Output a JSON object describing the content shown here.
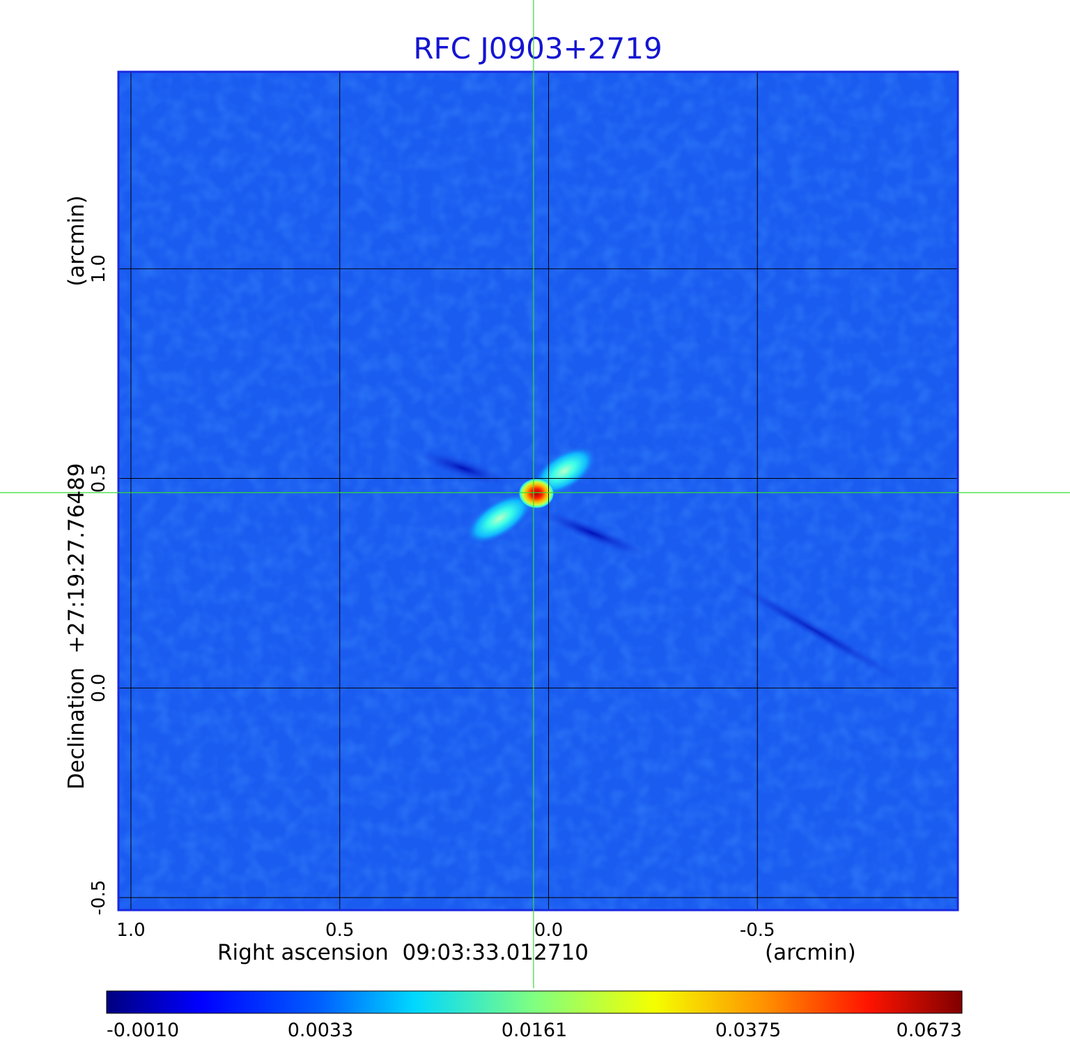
{
  "chart_data": {
    "type": "heatmap",
    "title": "RFC J0903+2719",
    "xlabel": "Right ascension  09:03:33.012710",
    "xunit": "(arcmin)",
    "ylabel": "Declination  +27:19:27.76489",
    "yunit": "(arcmin)",
    "x_ticks": [
      1.0,
      0.5,
      0.0,
      -0.5
    ],
    "x_tick_labels": [
      "1.0",
      "0.5",
      "0.0",
      "-0.5"
    ],
    "xlim": [
      1.03,
      -0.98
    ],
    "y_ticks": [
      1.0,
      0.5,
      0.0,
      -0.5
    ],
    "y_tick_labels": [
      "1.0",
      "0.5",
      "0.0",
      "-0.5"
    ],
    "ylim": [
      -0.53,
      1.47
    ],
    "grid": true,
    "crosshair": {
      "x": 0.036,
      "y": 0.466,
      "color": "#33dd33"
    },
    "source": {
      "peak_position": {
        "x": 0.03,
        "y": 0.47
      },
      "peak_value": 0.0673,
      "jet_components": [
        {
          "x": -0.06,
          "y": 0.54,
          "value": 0.01
        },
        {
          "x": 0.12,
          "y": 0.37,
          "value": 0.007
        }
      ]
    },
    "colorbar": {
      "colormap": "jet",
      "ticks": [
        -0.001,
        0.0033,
        0.0161,
        0.0375,
        0.0673
      ],
      "tick_labels": [
        "-0.0010",
        "0.0033",
        "0.0161",
        "0.0375",
        "0.0673"
      ],
      "range": [
        -0.001,
        0.0673
      ]
    }
  }
}
